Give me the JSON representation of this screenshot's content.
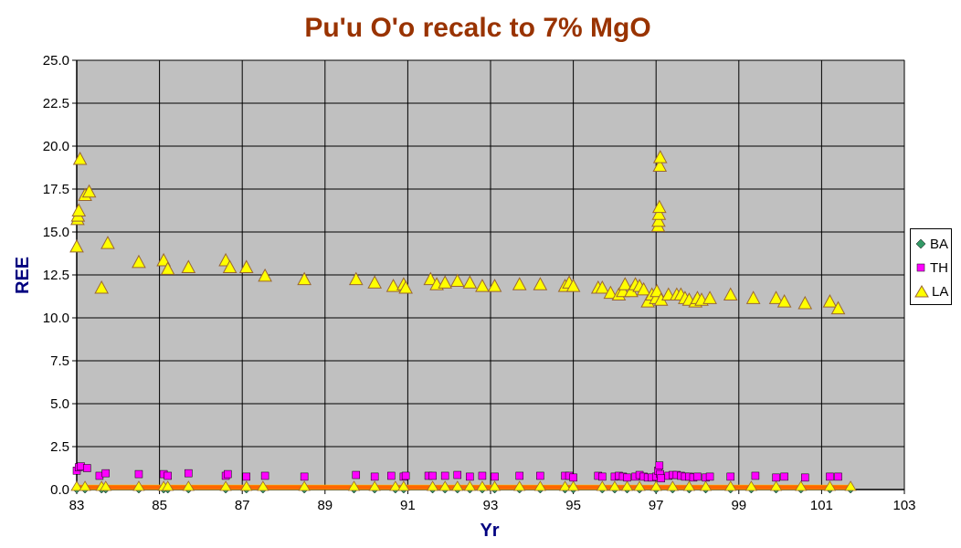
{
  "colors": {
    "title": "#993300",
    "axis_title": "#000080",
    "plot_bg": "#c0c0c0",
    "grid": "#000000",
    "ba": "#339966",
    "th": "#ff00ff",
    "la": "#ffff00",
    "marker_edge": "#996633",
    "baseline_fill": "#ff6600"
  },
  "chart_data": {
    "type": "scatter",
    "title": "Pu'u O'o recalc to 7% MgO",
    "xlabel": "Yr",
    "ylabel": "REE",
    "xlim": [
      83,
      103
    ],
    "ylim": [
      0,
      25
    ],
    "x_ticks": [
      "83",
      "85",
      "87",
      "89",
      "91",
      "93",
      "95",
      "97",
      "99",
      "101",
      "103"
    ],
    "y_ticks": [
      "0.0",
      "2.5",
      "5.0",
      "7.5",
      "10.0",
      "12.5",
      "15.0",
      "17.5",
      "20.0",
      "22.5",
      "25.0"
    ],
    "grid": true,
    "legend_position": "right",
    "series": [
      {
        "name": "BA",
        "marker": "diamond",
        "points": [
          [
            83.0,
            0
          ],
          [
            83.2,
            0
          ],
          [
            83.6,
            0
          ],
          [
            83.7,
            0
          ],
          [
            84.5,
            0
          ],
          [
            85.1,
            0
          ],
          [
            85.2,
            0
          ],
          [
            85.7,
            0
          ],
          [
            86.6,
            0
          ],
          [
            87.1,
            0
          ],
          [
            87.5,
            0
          ],
          [
            88.5,
            0
          ],
          [
            89.7,
            0
          ],
          [
            90.2,
            0
          ],
          [
            90.7,
            0
          ],
          [
            90.9,
            0
          ],
          [
            91.6,
            0
          ],
          [
            91.9,
            0
          ],
          [
            92.2,
            0
          ],
          [
            92.5,
            0
          ],
          [
            92.8,
            0
          ],
          [
            93.1,
            0
          ],
          [
            93.7,
            0
          ],
          [
            94.2,
            0
          ],
          [
            94.8,
            0
          ],
          [
            95.0,
            0
          ],
          [
            95.7,
            0
          ],
          [
            96.0,
            0
          ],
          [
            96.3,
            0
          ],
          [
            96.6,
            0
          ],
          [
            97.0,
            0
          ],
          [
            97.4,
            0
          ],
          [
            97.8,
            0
          ],
          [
            98.2,
            0
          ],
          [
            98.8,
            0
          ],
          [
            99.3,
            0
          ],
          [
            99.9,
            0
          ],
          [
            100.5,
            0
          ],
          [
            101.2,
            0
          ],
          [
            101.7,
            0
          ]
        ]
      },
      {
        "name": "TH",
        "marker": "square",
        "points": [
          [
            83.0,
            1.1
          ],
          [
            83.05,
            1.3
          ],
          [
            83.1,
            1.35
          ],
          [
            83.25,
            1.25
          ],
          [
            83.55,
            0.8
          ],
          [
            83.7,
            0.95
          ],
          [
            84.5,
            0.9
          ],
          [
            85.1,
            0.9
          ],
          [
            85.2,
            0.8
          ],
          [
            85.7,
            0.95
          ],
          [
            86.6,
            0.8
          ],
          [
            86.65,
            0.9
          ],
          [
            87.1,
            0.75
          ],
          [
            87.55,
            0.8
          ],
          [
            88.5,
            0.75
          ],
          [
            89.75,
            0.85
          ],
          [
            90.2,
            0.75
          ],
          [
            90.6,
            0.8
          ],
          [
            90.9,
            0.75
          ],
          [
            90.95,
            0.8
          ],
          [
            91.5,
            0.8
          ],
          [
            91.6,
            0.8
          ],
          [
            91.9,
            0.8
          ],
          [
            92.2,
            0.85
          ],
          [
            92.5,
            0.75
          ],
          [
            92.8,
            0.8
          ],
          [
            93.1,
            0.75
          ],
          [
            93.7,
            0.8
          ],
          [
            94.2,
            0.8
          ],
          [
            94.8,
            0.8
          ],
          [
            94.9,
            0.8
          ],
          [
            95.0,
            0.7
          ],
          [
            95.6,
            0.8
          ],
          [
            95.7,
            0.75
          ],
          [
            96.0,
            0.75
          ],
          [
            96.1,
            0.8
          ],
          [
            96.2,
            0.75
          ],
          [
            96.3,
            0.7
          ],
          [
            96.5,
            0.75
          ],
          [
            96.6,
            0.85
          ],
          [
            96.7,
            0.75
          ],
          [
            96.8,
            0.7
          ],
          [
            96.9,
            0.7
          ],
          [
            97.0,
            0.75
          ],
          [
            97.05,
            1.1
          ],
          [
            97.08,
            1.4
          ],
          [
            97.1,
            0.9
          ],
          [
            97.12,
            0.65
          ],
          [
            97.3,
            0.8
          ],
          [
            97.4,
            0.85
          ],
          [
            97.5,
            0.85
          ],
          [
            97.6,
            0.8
          ],
          [
            97.7,
            0.75
          ],
          [
            97.8,
            0.75
          ],
          [
            97.9,
            0.7
          ],
          [
            98.0,
            0.75
          ],
          [
            98.2,
            0.7
          ],
          [
            98.3,
            0.75
          ],
          [
            98.8,
            0.75
          ],
          [
            99.4,
            0.8
          ],
          [
            99.9,
            0.7
          ],
          [
            100.1,
            0.75
          ],
          [
            100.6,
            0.7
          ],
          [
            101.2,
            0.75
          ],
          [
            101.4,
            0.75
          ]
        ]
      },
      {
        "name": "LA",
        "marker": "triangle",
        "points": [
          [
            83.0,
            14.1
          ],
          [
            83.02,
            15.7
          ],
          [
            83.03,
            15.9
          ],
          [
            83.05,
            16.2
          ],
          [
            83.08,
            19.2
          ],
          [
            83.2,
            17.1
          ],
          [
            83.3,
            17.3
          ],
          [
            83.6,
            11.7
          ],
          [
            83.75,
            14.3
          ],
          [
            84.5,
            13.2
          ],
          [
            85.1,
            13.3
          ],
          [
            85.2,
            12.8
          ],
          [
            85.7,
            12.9
          ],
          [
            86.6,
            13.3
          ],
          [
            86.7,
            12.9
          ],
          [
            87.1,
            12.9
          ],
          [
            87.55,
            12.4
          ],
          [
            88.5,
            12.2
          ],
          [
            89.75,
            12.2
          ],
          [
            90.2,
            12.0
          ],
          [
            90.65,
            11.8
          ],
          [
            90.9,
            11.9
          ],
          [
            90.95,
            11.7
          ],
          [
            91.55,
            12.2
          ],
          [
            91.7,
            11.9
          ],
          [
            91.9,
            12.0
          ],
          [
            92.2,
            12.1
          ],
          [
            92.5,
            12.0
          ],
          [
            92.8,
            11.8
          ],
          [
            93.1,
            11.8
          ],
          [
            93.7,
            11.9
          ],
          [
            94.2,
            11.9
          ],
          [
            94.8,
            11.8
          ],
          [
            94.9,
            12.0
          ],
          [
            95.0,
            11.8
          ],
          [
            95.6,
            11.7
          ],
          [
            95.7,
            11.7
          ],
          [
            95.9,
            11.4
          ],
          [
            96.1,
            11.3
          ],
          [
            96.2,
            11.5
          ],
          [
            96.25,
            11.9
          ],
          [
            96.4,
            11.5
          ],
          [
            96.5,
            11.9
          ],
          [
            96.6,
            11.8
          ],
          [
            96.7,
            11.6
          ],
          [
            96.8,
            10.9
          ],
          [
            96.9,
            11.3
          ],
          [
            97.0,
            11.1
          ],
          [
            97.02,
            11.5
          ],
          [
            97.05,
            15.3
          ],
          [
            97.06,
            15.6
          ],
          [
            97.07,
            16.0
          ],
          [
            97.08,
            16.4
          ],
          [
            97.09,
            18.8
          ],
          [
            97.1,
            19.3
          ],
          [
            97.12,
            11.0
          ],
          [
            97.3,
            11.3
          ],
          [
            97.5,
            11.3
          ],
          [
            97.6,
            11.3
          ],
          [
            97.7,
            11.1
          ],
          [
            97.8,
            11.0
          ],
          [
            97.95,
            10.9
          ],
          [
            98.0,
            11.1
          ],
          [
            98.1,
            11.0
          ],
          [
            98.3,
            11.1
          ],
          [
            98.8,
            11.3
          ],
          [
            99.35,
            11.1
          ],
          [
            99.9,
            11.1
          ],
          [
            100.1,
            10.9
          ],
          [
            100.6,
            10.8
          ],
          [
            101.2,
            10.9
          ],
          [
            101.4,
            10.5
          ]
        ]
      }
    ]
  }
}
